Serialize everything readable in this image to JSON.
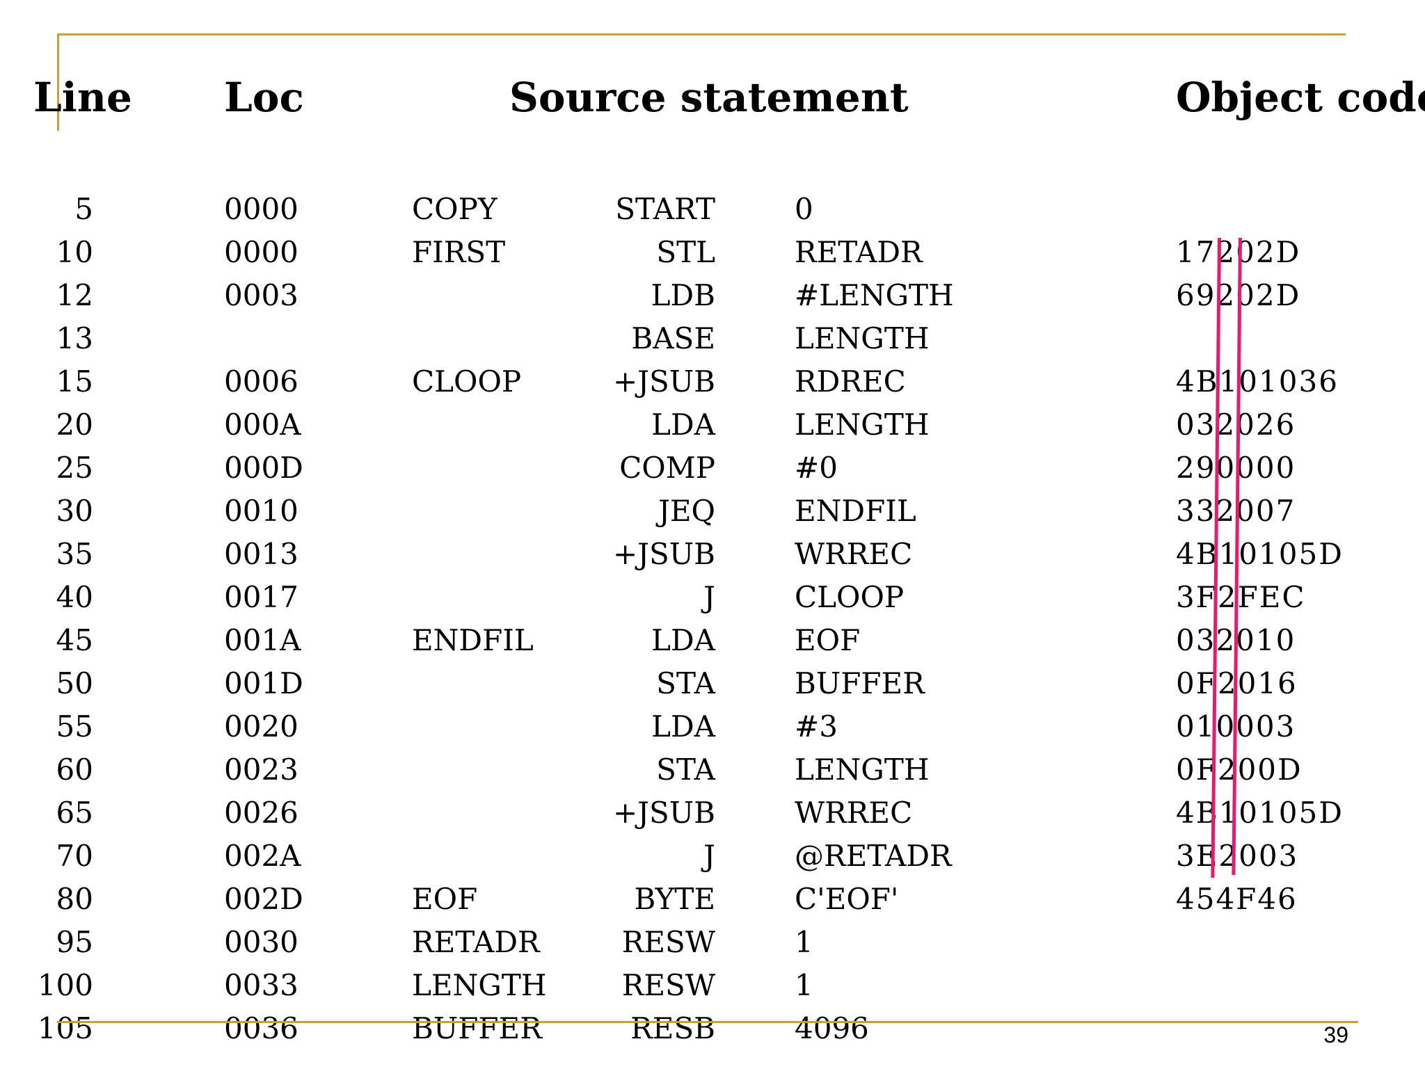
{
  "headers": {
    "line": "Line",
    "loc": "Loc",
    "source": "Source statement",
    "object": "Object code"
  },
  "rows": [
    {
      "line": "5",
      "loc": "0000",
      "label": "COPY",
      "op": "START",
      "operand": "0",
      "obj": ""
    },
    {
      "line": "10",
      "loc": "0000",
      "label": "FIRST",
      "op": "STL",
      "operand": "RETADR",
      "obj": "17202D"
    },
    {
      "line": "12",
      "loc": "0003",
      "label": "",
      "op": "LDB",
      "operand": "#LENGTH",
      "obj": "69202D"
    },
    {
      "line": "13",
      "loc": "",
      "label": "",
      "op": "BASE",
      "operand": "LENGTH",
      "obj": ""
    },
    {
      "line": "15",
      "loc": "0006",
      "label": "CLOOP",
      "op": "+JSUB",
      "operand": "RDREC",
      "obj": "4B101036"
    },
    {
      "line": "20",
      "loc": "000A",
      "label": "",
      "op": "LDA",
      "operand": "LENGTH",
      "obj": "032026"
    },
    {
      "line": "25",
      "loc": "000D",
      "label": "",
      "op": "COMP",
      "operand": "#0",
      "obj": "290000"
    },
    {
      "line": "30",
      "loc": "0010",
      "label": "",
      "op": "JEQ",
      "operand": "ENDFIL",
      "obj": "332007"
    },
    {
      "line": "35",
      "loc": "0013",
      "label": "",
      "op": "+JSUB",
      "operand": "WRREC",
      "obj": "4B10105D"
    },
    {
      "line": "40",
      "loc": "0017",
      "label": "",
      "op": "J",
      "operand": "CLOOP",
      "obj": "3F2FEC"
    },
    {
      "line": "45",
      "loc": "001A",
      "label": "ENDFIL",
      "op": "LDA",
      "operand": "EOF",
      "obj": "032010"
    },
    {
      "line": "50",
      "loc": "001D",
      "label": "",
      "op": "STA",
      "operand": "BUFFER",
      "obj": "0F2016"
    },
    {
      "line": "55",
      "loc": "0020",
      "label": "",
      "op": "LDA",
      "operand": "#3",
      "obj": "010003"
    },
    {
      "line": "60",
      "loc": "0023",
      "label": "",
      "op": "STA",
      "operand": "LENGTH",
      "obj": "0F200D"
    },
    {
      "line": "65",
      "loc": "0026",
      "label": "",
      "op": "+JSUB",
      "operand": "WRREC",
      "obj": "4B10105D"
    },
    {
      "line": "70",
      "loc": "002A",
      "label": "",
      "op": "J",
      "operand": "@RETADR",
      "obj": "3E2003"
    },
    {
      "line": "80",
      "loc": "002D",
      "label": "EOF",
      "op": "BYTE",
      "operand": "C'EOF'",
      "obj": "454F46"
    },
    {
      "line": "95",
      "loc": "0030",
      "label": "RETADR",
      "op": "RESW",
      "operand": "1",
      "obj": ""
    },
    {
      "line": "100",
      "loc": "0033",
      "label": "LENGTH",
      "op": "RESW",
      "operand": "1",
      "obj": ""
    },
    {
      "line": "105",
      "loc": "0036",
      "label": "BUFFER",
      "op": "RESB",
      "operand": "4096",
      "obj": ""
    }
  ],
  "page_number": "39",
  "colors": {
    "accent_rule": "#c9a227",
    "marker": "#e8196e"
  }
}
